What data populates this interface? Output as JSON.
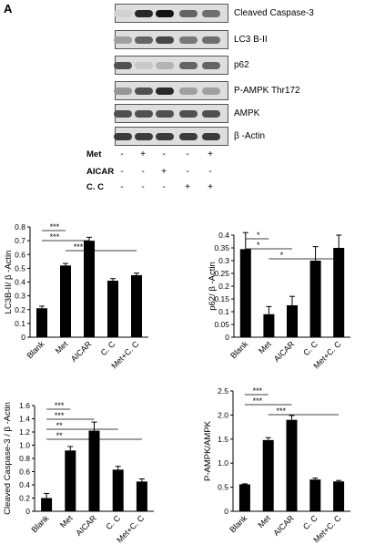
{
  "panel_label": "A",
  "blot": {
    "bands": [
      {
        "name": "Cleaved Caspase-3",
        "intensities": [
          0.05,
          0.9,
          1.0,
          0.6,
          0.55
        ]
      },
      {
        "name": "LC3 B-II",
        "intensities": [
          0.3,
          0.6,
          0.75,
          0.5,
          0.55
        ]
      },
      {
        "name": "p62",
        "intensities": [
          0.7,
          0.1,
          0.2,
          0.6,
          0.6
        ]
      },
      {
        "name": "P-AMPK Thr172",
        "intensities": [
          0.35,
          0.7,
          0.9,
          0.3,
          0.3
        ]
      },
      {
        "name": "AMPK",
        "intensities": [
          0.7,
          0.7,
          0.7,
          0.7,
          0.7
        ]
      },
      {
        "name": "β -Actin",
        "intensities": [
          0.8,
          0.8,
          0.8,
          0.8,
          0.8
        ]
      }
    ],
    "treatments": [
      {
        "name": "Met",
        "marks": [
          "-",
          "+",
          "-",
          "-",
          "+"
        ]
      },
      {
        "name": "AICAR",
        "marks": [
          "-",
          "-",
          "+",
          "-",
          "-"
        ]
      },
      {
        "name": "C. C",
        "marks": [
          "-",
          "-",
          "-",
          "+",
          "+"
        ]
      }
    ]
  },
  "chart_data": [
    {
      "type": "bar",
      "categories": [
        "Blank",
        "Met",
        "AICAR",
        "C. C",
        "Met+C. C"
      ],
      "values": [
        0.21,
        0.52,
        0.7,
        0.41,
        0.45
      ],
      "errors": [
        0.015,
        0.015,
        0.025,
        0.015,
        0.015
      ],
      "ylabel": "LC3B-II/ β -Actin",
      "ylim": [
        0,
        0.8
      ],
      "yticks": [
        "0",
        "0.1",
        "0.2",
        "0.3",
        "0.4",
        "0.5",
        "0.6",
        "0.7",
        "0.8"
      ],
      "significance": [
        {
          "from": 0,
          "to": 1,
          "label": "***"
        },
        {
          "from": 0,
          "to": 2,
          "label": "***"
        },
        {
          "from": 1,
          "to": 4,
          "label": "***"
        }
      ]
    },
    {
      "type": "bar",
      "categories": [
        "Blank",
        "Met",
        "AICAR",
        "C. C",
        "Met+C. C"
      ],
      "values": [
        0.345,
        0.09,
        0.125,
        0.3,
        0.35
      ],
      "errors": [
        0.065,
        0.03,
        0.035,
        0.055,
        0.05
      ],
      "ylabel": "p62/ β -Actin",
      "ylim": [
        0,
        0.4
      ],
      "yticks": [
        "0",
        "0.05",
        "0.1",
        "0.15",
        "0.2",
        "0.25",
        "0.3",
        "0.35",
        "0.4"
      ],
      "significance": [
        {
          "from": 0,
          "to": 1,
          "label": "*"
        },
        {
          "from": 0,
          "to": 2,
          "label": "*"
        },
        {
          "from": 1,
          "to": 4,
          "label": "*"
        }
      ]
    },
    {
      "type": "bar",
      "categories": [
        "Blank",
        "Met",
        "AICAR",
        "C. C",
        "Met+C. C"
      ],
      "values": [
        0.2,
        0.92,
        1.22,
        0.63,
        0.45
      ],
      "errors": [
        0.07,
        0.06,
        0.13,
        0.05,
        0.04
      ],
      "ylabel": "Cleaved Caspase-3 / β -Actin",
      "ylim": [
        0,
        1.6
      ],
      "yticks": [
        "0",
        "0.2",
        "0.4",
        "0.6",
        "0.8",
        "1.0",
        "1.2",
        "1.4",
        "1.6"
      ],
      "significance": [
        {
          "from": 0,
          "to": 1,
          "label": "***"
        },
        {
          "from": 0,
          "to": 2,
          "label": "***"
        },
        {
          "from": 0,
          "to": 3,
          "label": "**"
        },
        {
          "from": 0,
          "to": 4,
          "label": "**"
        }
      ]
    },
    {
      "type": "bar",
      "categories": [
        "Blank",
        "Met",
        "AICAR",
        "C. C",
        "Met+C. C"
      ],
      "values": [
        0.56,
        1.48,
        1.9,
        0.66,
        0.62
      ],
      "errors": [
        0.01,
        0.05,
        0.09,
        0.03,
        0.02
      ],
      "ylabel": "P-AMPK/AMPK",
      "ylim": [
        0,
        2.5
      ],
      "yticks": [
        "0",
        "0.5",
        "1.0",
        "1.5",
        "2.0",
        "2.5"
      ],
      "significance": [
        {
          "from": 0,
          "to": 1,
          "label": "***"
        },
        {
          "from": 0,
          "to": 2,
          "label": "***"
        },
        {
          "from": 1,
          "to": 4,
          "label": "***"
        }
      ]
    }
  ]
}
